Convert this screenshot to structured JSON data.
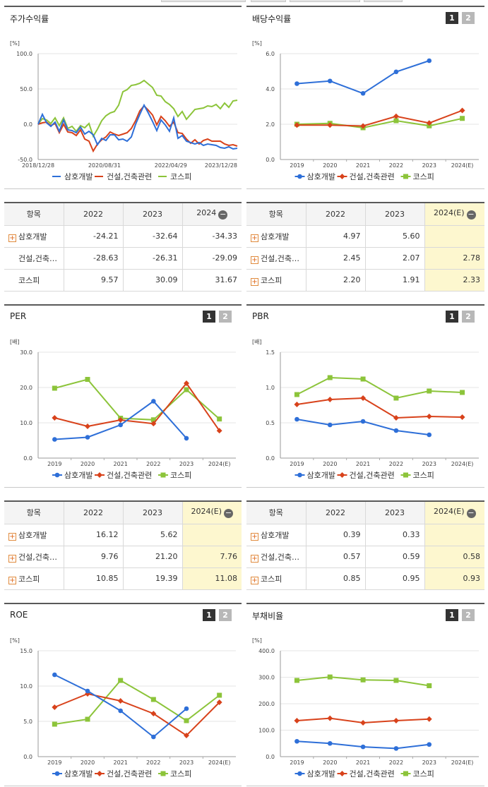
{
  "panels": {
    "stock_return": {
      "title": "주가수익률"
    },
    "dividend": {
      "title": "배당수익률",
      "nav": [
        "1",
        "2"
      ]
    },
    "per": {
      "title": "PER",
      "nav": [
        "1",
        "2"
      ]
    },
    "pbr": {
      "title": "PBR",
      "nav": [
        "1",
        "2"
      ]
    },
    "roe": {
      "title": "ROE",
      "nav": [
        "1",
        "2"
      ]
    },
    "debt": {
      "title": "부채비율",
      "nav": [
        "1",
        "2"
      ]
    }
  },
  "legend": {
    "s1": "삼호개발",
    "s2": "건설,건축관련",
    "s3": "코스피"
  },
  "colors": {
    "s1": "#2e6fd8",
    "s2": "#d8421b",
    "s3": "#8cc43a"
  },
  "tables": {
    "stock_return": {
      "headers": [
        "항목",
        "2022",
        "2023",
        "2024"
      ],
      "rows": [
        {
          "label": "삼호개발",
          "expand": true,
          "values": [
            "-24.21",
            "-32.64",
            "-34.33"
          ]
        },
        {
          "label": "건설,건축…",
          "expand": false,
          "values": [
            "-28.63",
            "-26.31",
            "-29.09"
          ]
        },
        {
          "label": "코스피",
          "expand": false,
          "values": [
            "9.57",
            "30.09",
            "31.67"
          ]
        }
      ]
    },
    "dividend": {
      "headers": [
        "항목",
        "2022",
        "2023",
        "2024(E)"
      ],
      "rows": [
        {
          "label": "삼호개발",
          "expand": true,
          "values": [
            "4.97",
            "5.60",
            ""
          ]
        },
        {
          "label": "건설,건축…",
          "expand": true,
          "values": [
            "2.45",
            "2.07",
            "2.78"
          ]
        },
        {
          "label": "코스피",
          "expand": true,
          "values": [
            "2.20",
            "1.91",
            "2.33"
          ]
        }
      ]
    },
    "per": {
      "headers": [
        "항목",
        "2022",
        "2023",
        "2024(E)"
      ],
      "rows": [
        {
          "label": "삼호개발",
          "expand": true,
          "values": [
            "16.12",
            "5.62",
            ""
          ]
        },
        {
          "label": "건설,건축…",
          "expand": true,
          "values": [
            "9.76",
            "21.20",
            "7.76"
          ]
        },
        {
          "label": "코스피",
          "expand": true,
          "values": [
            "10.85",
            "19.39",
            "11.08"
          ]
        }
      ]
    },
    "pbr": {
      "headers": [
        "항목",
        "2022",
        "2023",
        "2024(E)"
      ],
      "rows": [
        {
          "label": "삼호개발",
          "expand": true,
          "values": [
            "0.39",
            "0.33",
            ""
          ]
        },
        {
          "label": "건설,건축…",
          "expand": true,
          "values": [
            "0.57",
            "0.59",
            "0.58"
          ]
        },
        {
          "label": "코스피",
          "expand": true,
          "values": [
            "0.85",
            "0.95",
            "0.93"
          ]
        }
      ]
    }
  },
  "chart_data": [
    {
      "id": "stock_return",
      "type": "line",
      "title": "주가수익률",
      "unit": "[%]",
      "ylim": [
        -50,
        100
      ],
      "yticks": [
        "100.0",
        "50.0",
        "0.0",
        "-50.0"
      ],
      "xticks": [
        "2018/12/28",
        "2020/08/31",
        "2022/04/29",
        "2023/12/28"
      ],
      "series": [
        {
          "name": "삼호개발",
          "values": [
            0,
            14,
            2,
            -3,
            3,
            -10,
            6,
            -8,
            -9,
            -12,
            -4,
            -14,
            -10,
            -15,
            -29,
            -20,
            -23,
            -15,
            -15,
            -22,
            -21,
            -24,
            -18,
            0,
            14,
            27,
            16,
            4,
            -9,
            6,
            -1,
            -10,
            9,
            -20,
            -16,
            -24,
            -26,
            -28,
            -26,
            -30,
            -28,
            -29,
            -30,
            -33,
            -34,
            -32,
            -35,
            -34
          ]
        },
        {
          "name": "건설,건축관련",
          "values": [
            0,
            2,
            3,
            -2,
            1,
            -12,
            0,
            -11,
            -12,
            -16,
            -8,
            -21,
            -24,
            -38,
            -28,
            -22,
            -18,
            -11,
            -14,
            -16,
            -14,
            -12,
            -6,
            5,
            19,
            26,
            20,
            13,
            -1,
            11,
            5,
            -3,
            3,
            -12,
            -13,
            -21,
            -27,
            -22,
            -28,
            -23,
            -21,
            -24,
            -24,
            -24,
            -28,
            -30,
            -29,
            -31
          ]
        },
        {
          "name": "코스피",
          "values": [
            0,
            8,
            6,
            1,
            9,
            -2,
            9,
            -6,
            -3,
            -10,
            -2,
            -5,
            1,
            -17,
            -7,
            5,
            12,
            16,
            18,
            27,
            46,
            49,
            55,
            56,
            58,
            62,
            57,
            52,
            41,
            40,
            32,
            28,
            22,
            11,
            18,
            7,
            14,
            21,
            22,
            23,
            26,
            25,
            28,
            22,
            30,
            24,
            33,
            34
          ]
        }
      ]
    },
    {
      "id": "dividend",
      "type": "line",
      "title": "배당수익률",
      "unit": "[%]",
      "ylim": [
        0,
        6
      ],
      "yticks": [
        "6.0",
        "4.0",
        "2.0",
        "0.0"
      ],
      "categories": [
        "2019",
        "2020",
        "2021",
        "2022",
        "2023",
        "2024(E)"
      ],
      "series": [
        {
          "name": "삼호개발",
          "values": [
            4.3,
            4.45,
            3.75,
            4.97,
            5.6,
            null
          ]
        },
        {
          "name": "건설,건축관련",
          "values": [
            1.95,
            1.95,
            1.9,
            2.45,
            2.07,
            2.78
          ]
        },
        {
          "name": "코스피",
          "values": [
            2.0,
            2.05,
            1.8,
            2.2,
            1.91,
            2.33
          ]
        }
      ]
    },
    {
      "id": "per",
      "type": "line",
      "title": "PER",
      "unit": "[배]",
      "ylim": [
        0,
        30
      ],
      "yticks": [
        "30.0",
        "20.0",
        "10.0",
        "0.0"
      ],
      "categories": [
        "2019",
        "2020",
        "2021",
        "2022",
        "2023",
        "2024(E)"
      ],
      "series": [
        {
          "name": "삼호개발",
          "values": [
            5.3,
            5.9,
            9.4,
            16.12,
            5.62,
            null
          ]
        },
        {
          "name": "건설,건축관련",
          "values": [
            11.4,
            9.0,
            10.8,
            9.76,
            21.2,
            7.76
          ]
        },
        {
          "name": "코스피",
          "values": [
            19.8,
            22.3,
            11.3,
            10.85,
            19.39,
            11.08
          ]
        }
      ]
    },
    {
      "id": "pbr",
      "type": "line",
      "title": "PBR",
      "unit": "[배]",
      "ylim": [
        0,
        1.5
      ],
      "yticks": [
        "1.5",
        "1.0",
        "0.5",
        "0.0"
      ],
      "categories": [
        "2019",
        "2020",
        "2021",
        "2022",
        "2023",
        "2024(E)"
      ],
      "series": [
        {
          "name": "삼호개발",
          "values": [
            0.55,
            0.47,
            0.52,
            0.39,
            0.33,
            null
          ]
        },
        {
          "name": "건설,건축관련",
          "values": [
            0.76,
            0.83,
            0.85,
            0.57,
            0.59,
            0.58
          ]
        },
        {
          "name": "코스피",
          "values": [
            0.9,
            1.14,
            1.12,
            0.85,
            0.95,
            0.93
          ]
        }
      ]
    },
    {
      "id": "roe",
      "type": "line",
      "title": "ROE",
      "unit": "[%]",
      "ylim": [
        0,
        15
      ],
      "yticks": [
        "15.0",
        "10.0",
        "5.0",
        "0.0"
      ],
      "categories": [
        "2019",
        "2020",
        "2021",
        "2022",
        "2023",
        "2024(E)"
      ],
      "series": [
        {
          "name": "삼호개발",
          "values": [
            11.6,
            9.3,
            6.5,
            2.8,
            6.8,
            null
          ]
        },
        {
          "name": "건설,건축관련",
          "values": [
            7.0,
            8.9,
            7.9,
            6.1,
            3.0,
            7.7
          ]
        },
        {
          "name": "코스피",
          "values": [
            4.6,
            5.3,
            10.8,
            8.1,
            5.1,
            8.7
          ]
        }
      ]
    },
    {
      "id": "debt",
      "type": "line",
      "title": "부채비율",
      "unit": "[%]",
      "ylim": [
        0,
        400
      ],
      "yticks": [
        "400.0",
        "300.0",
        "200.0",
        "100.0",
        "0.0"
      ],
      "categories": [
        "2019",
        "2020",
        "2021",
        "2022",
        "2023",
        "2024(E)"
      ],
      "series": [
        {
          "name": "삼호개발",
          "values": [
            58,
            50,
            37,
            31,
            46,
            null
          ]
        },
        {
          "name": "건설,건축관련",
          "values": [
            136,
            145,
            128,
            136,
            142,
            null
          ]
        },
        {
          "name": "코스피",
          "values": [
            288,
            301,
            290,
            288,
            268,
            null
          ]
        }
      ]
    }
  ]
}
